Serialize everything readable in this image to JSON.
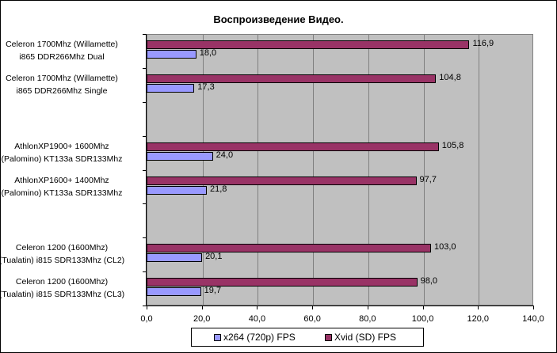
{
  "chart_data": {
    "type": "bar",
    "orientation": "horizontal",
    "title": "Воспроизведение Видео.",
    "xlabel": "",
    "ylabel": "",
    "xlim": [
      0,
      140
    ],
    "x_ticks": [
      "0,0",
      "20,0",
      "40,0",
      "60,0",
      "80,0",
      "100,0",
      "120,0",
      "140,0"
    ],
    "grid": true,
    "legend_position": "bottom",
    "categories": [
      [
        "Celeron 1700Mhz  (Willamette)",
        "i865 DDR266Mhz Dual"
      ],
      [
        "Celeron 1700Mhz  (Willamette)",
        "i865 DDR266Mhz Single"
      ],
      [
        "",
        ""
      ],
      [
        "AthlonXP1900+ 1600Mhz",
        "(Palomino) KT133a SDR133Mhz"
      ],
      [
        "AthlonXP1600+ 1400Mhz",
        "(Palomino) KT133a SDR133Mhz"
      ],
      [
        "",
        ""
      ],
      [
        "Celeron 1200 (1600Mhz)",
        "(Tualatin) i815 SDR133Mhz (CL2)"
      ],
      [
        "Celeron 1200 (1600Mhz)",
        "(Tualatin) i815 SDR133Mhz (CL3)"
      ]
    ],
    "series": [
      {
        "name": "x264 (720p) FPS",
        "color": "#9999ff",
        "values": [
          18.0,
          17.3,
          null,
          24.0,
          21.8,
          null,
          20.1,
          19.7
        ],
        "labels": [
          "18,0",
          "17,3",
          "",
          "24,0",
          "21,8",
          "",
          "20,1",
          "19,7"
        ]
      },
      {
        "name": "Xvid (SD) FPS",
        "color": "#993366",
        "values": [
          116.9,
          104.8,
          null,
          105.8,
          97.7,
          null,
          103.0,
          98.0
        ],
        "labels": [
          "116,9",
          "104,8",
          "",
          "105,8",
          "97,7",
          "",
          "103,0",
          "98,0"
        ]
      }
    ]
  }
}
